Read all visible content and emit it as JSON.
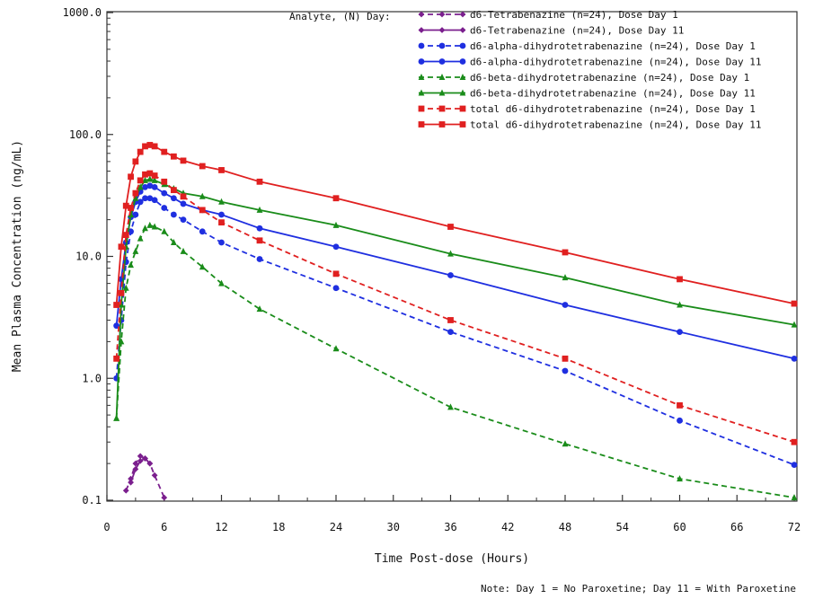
{
  "chart_data": {
    "type": "line",
    "xlabel": "Time Post-dose (Hours)",
    "ylabel": "Mean Plasma Concentration (ng/mL)",
    "x_scale": "linear",
    "y_scale": "log",
    "xlim": [
      0,
      72
    ],
    "ylim": [
      0.1,
      1000
    ],
    "x_ticks": [
      "0",
      "6",
      "12",
      "18",
      "24",
      "30",
      "36",
      "42",
      "48",
      "54",
      "60",
      "66",
      "72"
    ],
    "y_ticks": [
      "0.1",
      "1.0",
      "10.0",
      "100.0",
      "1000.0"
    ],
    "y_tick_values": [
      0.1,
      1,
      10,
      100,
      1000
    ],
    "grid": false,
    "legend_title": "Analyte, (N) Day:",
    "legend_position": "top-right",
    "note": "Note: Day 1 = No Paroxetine; Day 11 = With Paroxetine",
    "series": [
      {
        "name": "d6-Tetrabenazine (n=24), Dose Day 1",
        "color": "#7b1f8e",
        "dash": "dashed",
        "marker": "diamond",
        "x": [
          2,
          2.5,
          3,
          3.5,
          4,
          4.5,
          5,
          6
        ],
        "y": [
          0.12,
          0.15,
          0.2,
          0.23,
          0.22,
          0.2,
          0.16,
          0.105
        ]
      },
      {
        "name": "d6-Tetrabenazine (n=24), Dose Day 11",
        "color": "#7b1f8e",
        "dash": "solid",
        "marker": "diamond",
        "x": [
          2.5,
          3,
          3.5,
          4,
          4.5
        ],
        "y": [
          0.14,
          0.18,
          0.21,
          0.22,
          0.2
        ]
      },
      {
        "name": "d6-alpha-dihydrotetrabenazine (n=24), Dose Day 1",
        "color": "#1f2fe0",
        "dash": "dashed",
        "marker": "circle",
        "x": [
          1,
          1.5,
          2,
          2.5,
          3,
          3.5,
          4,
          4.5,
          5,
          6,
          7,
          8,
          10,
          12,
          16,
          24,
          36,
          48,
          60,
          72
        ],
        "y": [
          1.0,
          3.0,
          9.0,
          16,
          22,
          28,
          30,
          30,
          29,
          25,
          22,
          20,
          16,
          13,
          9.5,
          5.5,
          2.4,
          1.15,
          0.45,
          0.195
        ]
      },
      {
        "name": "d6-alpha-dihydrotetrabenazine (n=24), Dose Day 11",
        "color": "#1f2fe0",
        "dash": "solid",
        "marker": "circle",
        "x": [
          1,
          1.5,
          2,
          2.5,
          3,
          3.5,
          4,
          4.5,
          5,
          6,
          7,
          8,
          10,
          12,
          16,
          24,
          36,
          48,
          60,
          72
        ],
        "y": [
          2.7,
          6.5,
          13,
          21,
          28,
          34,
          37,
          38,
          37,
          33,
          30,
          27,
          24,
          22,
          17,
          12,
          7.0,
          4.0,
          2.4,
          1.45
        ]
      },
      {
        "name": "d6-beta-dihydrotetrabenazine (n=24), Dose Day 1",
        "color": "#1a8c1a",
        "dash": "dashed",
        "marker": "triangle",
        "x": [
          1,
          1.5,
          2,
          2.5,
          3,
          3.5,
          4,
          4.5,
          5,
          6,
          7,
          8,
          10,
          12,
          16,
          24,
          36,
          48,
          60,
          72
        ],
        "y": [
          0.47,
          2.0,
          5.5,
          8.5,
          11,
          14,
          17,
          18,
          17.5,
          16,
          13,
          11,
          8.2,
          6.0,
          3.7,
          1.75,
          0.58,
          0.29,
          0.15,
          0.105
        ]
      },
      {
        "name": "d6-beta-dihydrotetrabenazine (n=24), Dose Day 11",
        "color": "#1a8c1a",
        "dash": "solid",
        "marker": "triangle",
        "x": [
          1,
          1.5,
          2,
          2.5,
          3,
          3.5,
          4,
          4.5,
          5,
          6,
          7,
          8,
          10,
          12,
          16,
          24,
          36,
          48,
          60,
          72
        ],
        "y": [
          0.47,
          4.0,
          12,
          22,
          30,
          37,
          42,
          43,
          42,
          39,
          36,
          33,
          31,
          28,
          24,
          18,
          10.5,
          6.7,
          4.0,
          2.75
        ]
      },
      {
        "name": "total d6-dihydrotetrabenazine (n=24), Dose Day 1",
        "color": "#e02020",
        "dash": "dashed",
        "marker": "square",
        "x": [
          1,
          1.5,
          2,
          2.5,
          3,
          3.5,
          4,
          4.5,
          5,
          6,
          7,
          8,
          10,
          12,
          16,
          24,
          36,
          48,
          60,
          72
        ],
        "y": [
          1.45,
          5.0,
          15,
          25,
          33,
          42,
          47,
          48,
          46,
          41,
          35,
          31,
          24,
          19,
          13.5,
          7.2,
          3.0,
          1.45,
          0.6,
          0.3
        ]
      },
      {
        "name": "total d6-dihydrotetrabenazine (n=24), Dose Day 11",
        "color": "#e02020",
        "dash": "solid",
        "marker": "square",
        "x": [
          1,
          1.5,
          2,
          2.5,
          3,
          3.5,
          4,
          4.5,
          5,
          6,
          7,
          8,
          10,
          12,
          16,
          24,
          36,
          48,
          60,
          72
        ],
        "y": [
          4.0,
          12,
          26,
          45,
          60,
          72,
          80,
          82,
          80,
          72,
          66,
          61,
          55,
          51,
          41,
          30,
          17.5,
          10.8,
          6.5,
          4.1
        ]
      }
    ]
  }
}
